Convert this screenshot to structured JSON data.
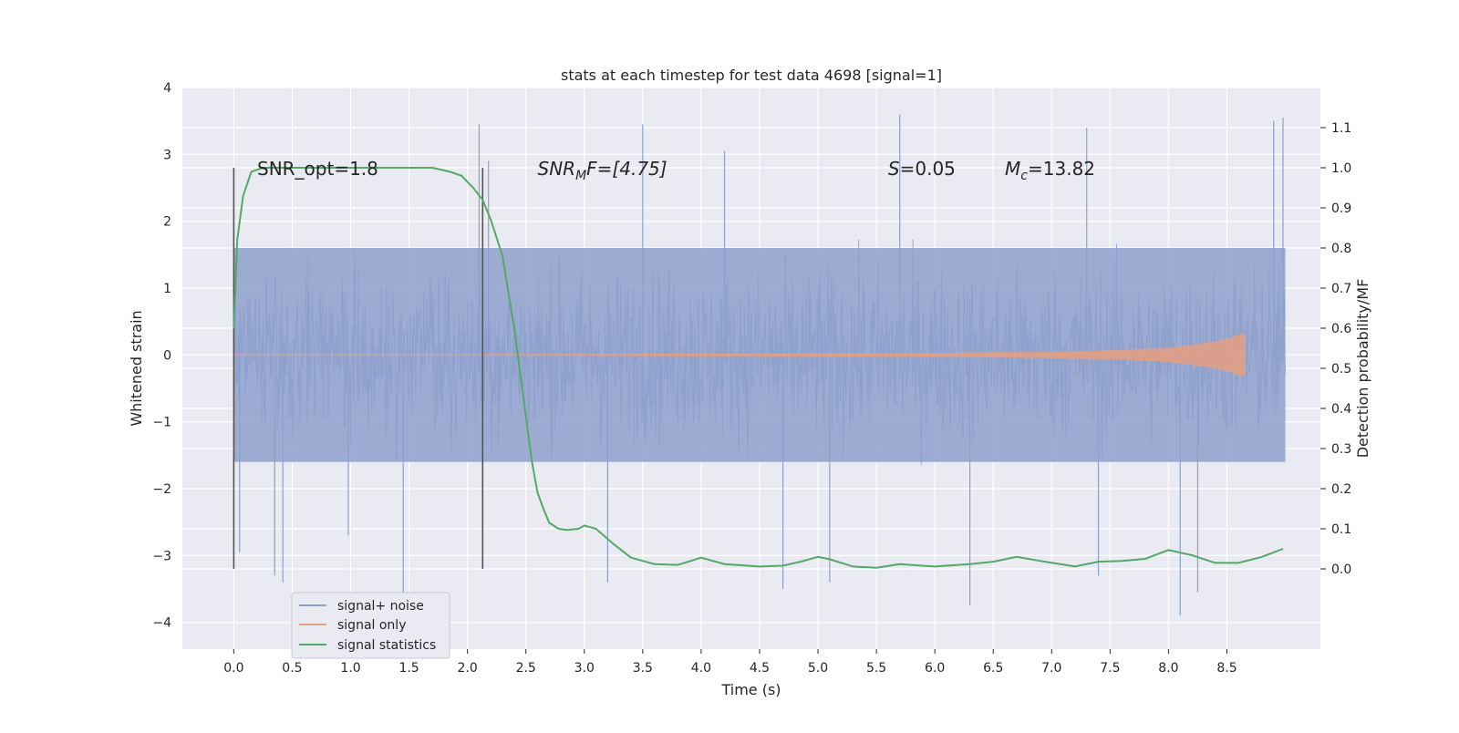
{
  "chart_data": {
    "type": "line",
    "title": "stats at each timestep for test data 4698 [signal=1]",
    "xlabel": "Time (s)",
    "ylabel_left": "Whitened strain",
    "ylabel_right": "Detection probability/MF",
    "xlim": [
      -0.44,
      9.3
    ],
    "ylim_left": [
      -4.4,
      4.0
    ],
    "ylim_right": [
      -0.2,
      1.2
    ],
    "x_ticks": [
      0.0,
      0.5,
      1.0,
      1.5,
      2.0,
      2.5,
      3.0,
      3.5,
      4.0,
      4.5,
      5.0,
      5.5,
      6.0,
      6.5,
      7.0,
      7.5,
      8.0,
      8.5
    ],
    "x_tick_labels": [
      "0.0",
      "0.5",
      "1.0",
      "1.5",
      "2.0",
      "2.5",
      "3.0",
      "3.5",
      "4.0",
      "4.5",
      "5.0",
      "5.5",
      "6.0",
      "6.5",
      "7.0",
      "7.5",
      "8.0",
      "8.5"
    ],
    "y_ticks_left": [
      -4,
      -3,
      -2,
      -1,
      0,
      1,
      2,
      3,
      4
    ],
    "y_tick_labels_left": [
      "−4",
      "−3",
      "−2",
      "−1",
      "0",
      "1",
      "2",
      "3",
      "4"
    ],
    "y_ticks_right": [
      0.0,
      0.1,
      0.2,
      0.3,
      0.4,
      0.5,
      0.6,
      0.7,
      0.8,
      0.9,
      1.0,
      1.1
    ],
    "y_tick_labels_right": [
      "0.0",
      "0.1",
      "0.2",
      "0.3",
      "0.4",
      "0.5",
      "0.6",
      "0.7",
      "0.8",
      "0.9",
      "1.0",
      "1.1"
    ],
    "grid": true,
    "legend_position": "lower-left",
    "series": [
      {
        "name": "signal+ noise",
        "axis": "left",
        "color": "#8da0cb",
        "x_range": [
          0.0,
          9.0
        ],
        "typical_range": [
          -1.6,
          1.6
        ],
        "peaks": [
          [
            0.0,
            2.8
          ],
          [
            0.05,
            -2.95
          ],
          [
            0.35,
            -3.3
          ],
          [
            0.42,
            -3.4
          ],
          [
            0.98,
            -2.7
          ],
          [
            1.45,
            -3.55
          ],
          [
            2.1,
            3.45
          ],
          [
            2.18,
            2.9
          ],
          [
            3.2,
            -3.4
          ],
          [
            3.5,
            3.45
          ],
          [
            4.2,
            3.05
          ],
          [
            4.7,
            -3.5
          ],
          [
            5.1,
            -3.4
          ],
          [
            5.7,
            3.6
          ],
          [
            6.3,
            -3.75
          ],
          [
            7.3,
            3.4
          ],
          [
            7.4,
            -3.3
          ],
          [
            8.1,
            -3.9
          ],
          [
            8.25,
            -3.55
          ],
          [
            8.9,
            3.5
          ],
          [
            8.98,
            3.55
          ]
        ]
      },
      {
        "name": "signal only",
        "axis": "left",
        "color": "#e0a085",
        "x": [
          0.0,
          1.0,
          2.0,
          3.0,
          4.0,
          5.0,
          6.0,
          6.5,
          7.0,
          7.5,
          7.8,
          8.0,
          8.2,
          8.4,
          8.55,
          8.63,
          8.66
        ],
        "envelope": [
          0.01,
          0.01,
          0.01,
          0.015,
          0.02,
          0.025,
          0.03,
          0.04,
          0.05,
          0.07,
          0.09,
          0.11,
          0.15,
          0.2,
          0.27,
          0.33,
          0.3
        ]
      },
      {
        "name": "signal statistics",
        "axis": "right",
        "color": "#55a868",
        "x": [
          0.0,
          0.03,
          0.08,
          0.15,
          0.25,
          0.5,
          1.0,
          1.5,
          1.7,
          1.85,
          1.95,
          2.05,
          2.13,
          2.2,
          2.3,
          2.4,
          2.5,
          2.55,
          2.6,
          2.65,
          2.7,
          2.78,
          2.85,
          2.95,
          3.0,
          3.1,
          3.25,
          3.4,
          3.6,
          3.8,
          4.0,
          4.2,
          4.5,
          4.7,
          4.85,
          5.0,
          5.1,
          5.3,
          5.5,
          5.7,
          6.0,
          6.3,
          6.5,
          6.7,
          6.9,
          7.2,
          7.4,
          7.6,
          7.8,
          8.0,
          8.2,
          8.4,
          8.6,
          8.8,
          8.98
        ],
        "values": [
          0.6,
          0.82,
          0.93,
          0.99,
          1.0,
          1.0,
          1.0,
          1.0,
          1.0,
          0.99,
          0.98,
          0.95,
          0.92,
          0.87,
          0.78,
          0.6,
          0.38,
          0.27,
          0.19,
          0.15,
          0.115,
          0.1,
          0.097,
          0.1,
          0.108,
          0.1,
          0.062,
          0.028,
          0.012,
          0.01,
          0.028,
          0.012,
          0.006,
          0.008,
          0.018,
          0.03,
          0.024,
          0.006,
          0.003,
          0.012,
          0.006,
          0.012,
          0.018,
          0.03,
          0.02,
          0.006,
          0.018,
          0.02,
          0.025,
          0.047,
          0.034,
          0.015,
          0.015,
          0.03,
          0.05
        ]
      }
    ],
    "markers": {
      "axis": "left",
      "color": "#555555",
      "lines": [
        {
          "x": 0.0,
          "y1": -3.2,
          "y2": 2.8
        },
        {
          "x": 2.13,
          "y1": -3.2,
          "y2": 2.8
        }
      ]
    },
    "annotations": [
      {
        "text": "SNR_opt=1.8",
        "x": 0.2,
        "y": 2.8
      },
      {
        "text_math": "SNR",
        "text_sub": "M",
        "text_rest": "F=[4.75]",
        "x": 2.6,
        "y": 2.8
      },
      {
        "text_math": "S",
        "text_rest": "=0.05",
        "x": 5.6,
        "y": 2.8
      },
      {
        "text_math": "M",
        "text_sub": "c",
        "text_rest": "=13.82",
        "x": 6.6,
        "y": 2.8
      }
    ]
  }
}
